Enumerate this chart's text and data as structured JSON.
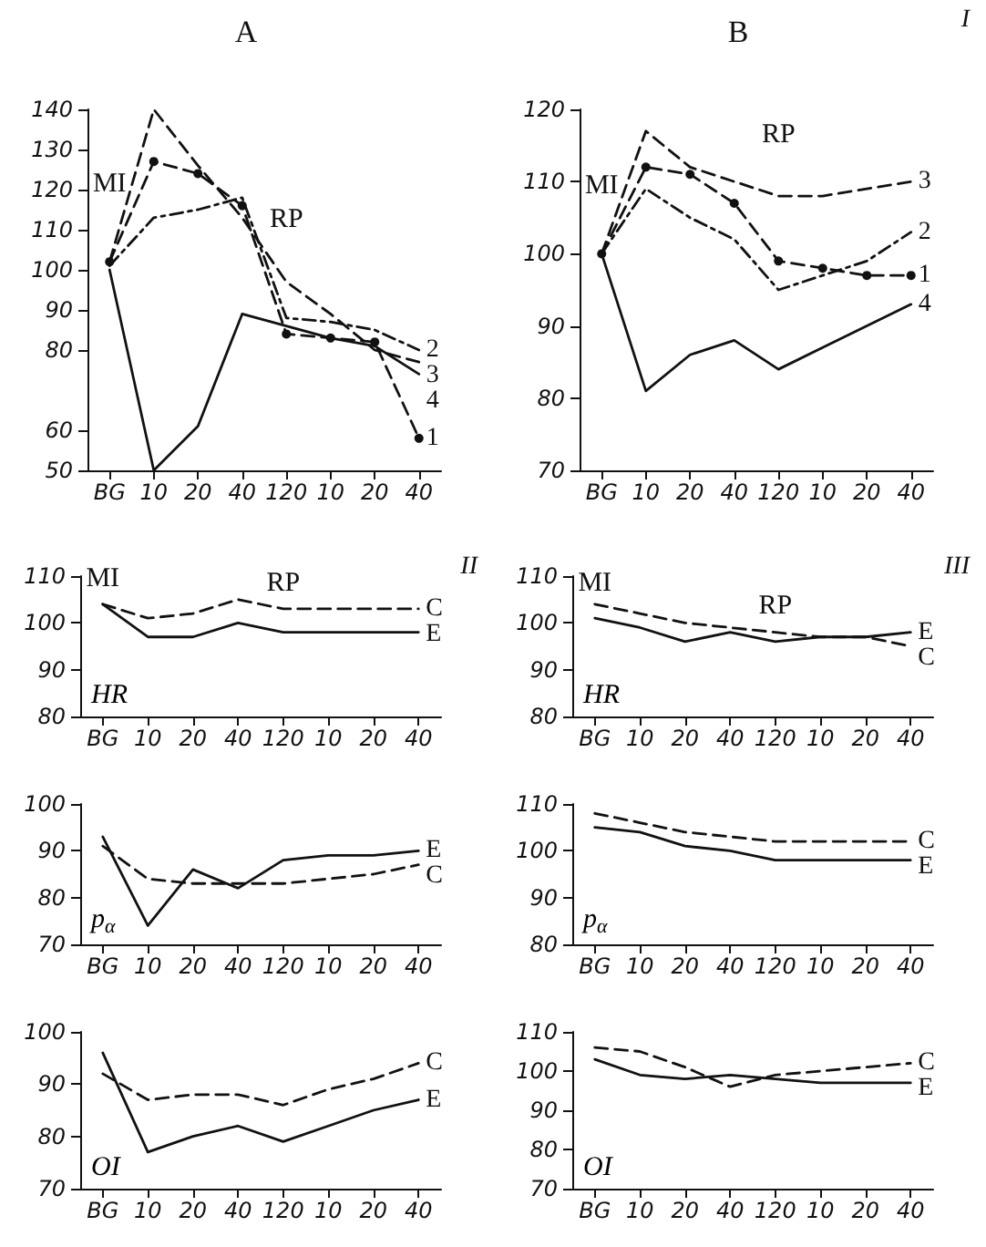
{
  "chart_data": [
    {
      "type": "line",
      "title": "A",
      "categories": [
        "BG",
        "10",
        "20",
        "40",
        "120",
        "10",
        "20",
        "40"
      ],
      "ylim": [
        50,
        140
      ],
      "yticks": [
        50,
        60,
        80,
        90,
        100,
        110,
        120,
        130,
        140
      ],
      "annotations": [
        {
          "text": "MI",
          "x": "BG",
          "y": 108
        },
        {
          "text": "RP",
          "x": "120",
          "y": 99
        }
      ],
      "series": [
        {
          "name": "1",
          "color": "#111111",
          "line_style": "dashed",
          "marker": "circle",
          "values": [
            102,
            127,
            124,
            116,
            84,
            83,
            82,
            58
          ]
        },
        {
          "name": "2",
          "color": "#111111",
          "line_style": "dotted",
          "values": [
            101,
            113,
            115,
            118,
            88,
            87,
            85,
            80
          ]
        },
        {
          "name": "3",
          "color": "#111111",
          "line_style": "dashed",
          "values": [
            102,
            140,
            126,
            113,
            97,
            89,
            80,
            77
          ]
        },
        {
          "name": "4",
          "color": "#111111",
          "line_style": "solid",
          "values": [
            100,
            50,
            61,
            89,
            86,
            83,
            81,
            74
          ]
        }
      ]
    },
    {
      "type": "line",
      "title": "B",
      "categories": [
        "BG",
        "10",
        "20",
        "40",
        "120",
        "10",
        "20",
        "40"
      ],
      "ylim": [
        70,
        120
      ],
      "yticks": [
        70,
        80,
        90,
        100,
        110,
        120
      ],
      "annotations": [
        "I",
        {
          "text": "MI",
          "x": "BG",
          "y": 102
        },
        {
          "text": "RP",
          "x": "120",
          "y": 109
        }
      ],
      "series": [
        {
          "name": "1",
          "color": "#111111",
          "line_style": "dashed",
          "marker": "circle",
          "values": [
            100,
            112,
            111,
            107,
            99,
            98,
            97,
            97
          ]
        },
        {
          "name": "2",
          "color": "#111111",
          "line_style": "dotted",
          "values": [
            100,
            109,
            105,
            102,
            95,
            97,
            99,
            103
          ]
        },
        {
          "name": "3",
          "color": "#111111",
          "line_style": "dashed",
          "values": [
            100,
            117,
            112,
            110,
            108,
            108,
            109,
            110
          ]
        },
        {
          "name": "4",
          "color": "#111111",
          "line_style": "solid",
          "values": [
            100,
            81,
            86,
            88,
            84,
            87,
            90,
            93
          ]
        }
      ]
    },
    {
      "type": "line",
      "ylabel": "HR",
      "categories": [
        "BG",
        "10",
        "20",
        "40",
        "120",
        "10",
        "20",
        "40"
      ],
      "ylim": [
        80,
        110
      ],
      "yticks": [
        80,
        90,
        100,
        110
      ],
      "annotations": [
        "II",
        {
          "text": "MI",
          "x": "BG",
          "y": 105
        },
        {
          "text": "RP",
          "x": "120",
          "y": 104
        }
      ],
      "series": [
        {
          "name": "C",
          "color": "#111111",
          "line_style": "dashed",
          "values": [
            104,
            101,
            102,
            105,
            103,
            103,
            103,
            103
          ]
        },
        {
          "name": "E",
          "color": "#111111",
          "line_style": "solid",
          "values": [
            104,
            97,
            97,
            100,
            98,
            98,
            98,
            98
          ]
        }
      ]
    },
    {
      "type": "line",
      "ylabel": "HR",
      "categories": [
        "BG",
        "10",
        "20",
        "40",
        "120",
        "10",
        "20",
        "40"
      ],
      "ylim": [
        80,
        110
      ],
      "yticks": [
        80,
        90,
        100,
        110
      ],
      "annotations": [
        "III",
        {
          "text": "MI",
          "x": "BG",
          "y": 104
        },
        {
          "text": "RP",
          "x": "120",
          "y": 99
        }
      ],
      "series": [
        {
          "name": "C",
          "color": "#111111",
          "line_style": "dashed",
          "values": [
            104,
            102,
            100,
            99,
            98,
            97,
            97,
            95
          ]
        },
        {
          "name": "E",
          "color": "#111111",
          "line_style": "solid",
          "values": [
            101,
            99,
            96,
            98,
            96,
            97,
            97,
            98
          ]
        }
      ]
    },
    {
      "type": "line",
      "ylabel": "p$_{α}$",
      "categories": [
        "BG",
        "10",
        "20",
        "40",
        "120",
        "10",
        "20",
        "40"
      ],
      "ylim": [
        70,
        100
      ],
      "yticks": [
        70,
        80,
        90,
        100
      ],
      "series": [
        {
          "name": "E",
          "color": "#111111",
          "line_style": "solid",
          "values": [
            93,
            74,
            86,
            82,
            88,
            89,
            89,
            90
          ]
        },
        {
          "name": "C",
          "color": "#111111",
          "line_style": "dashed",
          "values": [
            91,
            84,
            83,
            83,
            83,
            84,
            85,
            87
          ]
        }
      ]
    },
    {
      "type": "line",
      "ylabel": "p$_{α}$",
      "categories": [
        "BG",
        "10",
        "20",
        "40",
        "120",
        "10",
        "20",
        "40"
      ],
      "ylim": [
        80,
        110
      ],
      "yticks": [
        80,
        90,
        100,
        110
      ],
      "series": [
        {
          "name": "C",
          "color": "#111111",
          "line_style": "dashed",
          "values": [
            108,
            106,
            104,
            103,
            102,
            102,
            102,
            102
          ]
        },
        {
          "name": "E",
          "color": "#111111",
          "line_style": "solid",
          "values": [
            105,
            104,
            101,
            100,
            98,
            98,
            98,
            98
          ]
        }
      ]
    },
    {
      "type": "line",
      "ylabel": "OI",
      "categories": [
        "BG",
        "10",
        "20",
        "40",
        "120",
        "10",
        "20",
        "40"
      ],
      "ylim": [
        70,
        100
      ],
      "yticks": [
        70,
        80,
        90,
        100
      ],
      "series": [
        {
          "name": "C",
          "color": "#111111",
          "line_style": "dashed",
          "values": [
            92,
            87,
            88,
            88,
            86,
            89,
            91,
            94
          ]
        },
        {
          "name": "E",
          "color": "#111111",
          "line_style": "solid",
          "values": [
            96,
            77,
            80,
            82,
            79,
            82,
            85,
            87
          ]
        }
      ]
    },
    {
      "type": "line",
      "ylabel": "OI",
      "categories": [
        "BG",
        "10",
        "20",
        "40",
        "120",
        "10",
        "20",
        "40"
      ],
      "ylim": [
        70,
        110
      ],
      "yticks": [
        70,
        80,
        90,
        100,
        110
      ],
      "series": [
        {
          "name": "C",
          "color": "#111111",
          "line_style": "dashed",
          "values": [
            106,
            105,
            101,
            96,
            99,
            100,
            101,
            102
          ]
        },
        {
          "name": "E",
          "color": "#111111",
          "line_style": "solid",
          "values": [
            103,
            99,
            98,
            99,
            98,
            97,
            97,
            97
          ]
        }
      ]
    }
  ]
}
